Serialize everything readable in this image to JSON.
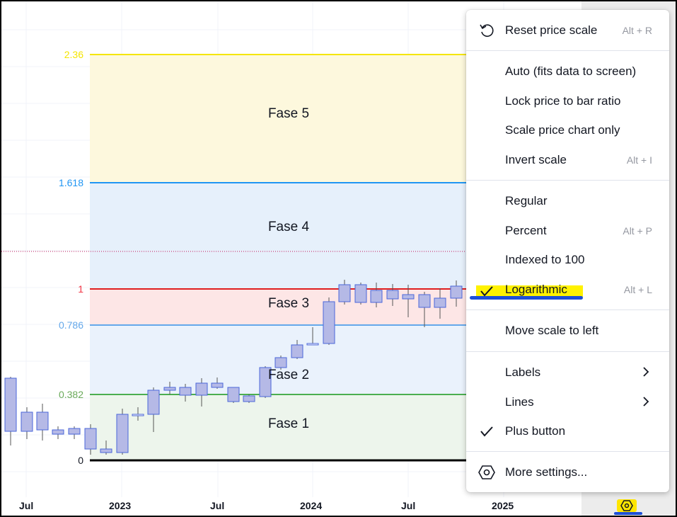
{
  "chart": {
    "fib_levels": [
      {
        "level": "2.36",
        "color": "#f5e500",
        "line_color": "#f5e500"
      },
      {
        "level": "1.618",
        "color": "#2196f3",
        "line_color": "#2196f3"
      },
      {
        "level": "1",
        "color": "#f23645",
        "line_color": "#e02020"
      },
      {
        "level": "0.786",
        "color": "#64a8ea",
        "line_color": "#64a8ea"
      },
      {
        "level": "0.382",
        "color": "#6aaa5a",
        "line_color": "#4caf50"
      },
      {
        "level": "0",
        "color": "#131722",
        "line_color": "#000000"
      }
    ],
    "zones": [
      {
        "label": "Fase 5",
        "fill": "#fdf8dd"
      },
      {
        "label": "Fase 4",
        "fill": "#e6f0fb"
      },
      {
        "label": "Fase 3",
        "fill": "#fde6e6"
      },
      {
        "label": "Fase 2",
        "fill": "#eaf2fc"
      },
      {
        "label": "Fase 1",
        "fill": "#edf5ec"
      }
    ],
    "time_axis": [
      "Jul",
      "2023",
      "Jul",
      "2024",
      "Jul",
      "2025"
    ]
  },
  "menu": {
    "items": [
      {
        "label": "Reset price scale",
        "shortcut": "Alt + R",
        "icon": "reset-icon"
      },
      {
        "label": "Auto (fits data to screen)",
        "shortcut": ""
      },
      {
        "label": "Lock price to bar ratio",
        "shortcut": ""
      },
      {
        "label": "Scale price chart only",
        "shortcut": ""
      },
      {
        "label": "Invert scale",
        "shortcut": "Alt + I"
      },
      {
        "label": "Regular",
        "shortcut": ""
      },
      {
        "label": "Percent",
        "shortcut": "Alt + P"
      },
      {
        "label": "Indexed to 100",
        "shortcut": ""
      },
      {
        "label": "Logarithmic",
        "shortcut": "Alt + L",
        "checked": true
      },
      {
        "label": "Move scale to left",
        "shortcut": ""
      },
      {
        "label": "Labels",
        "submenu": true
      },
      {
        "label": "Lines",
        "submenu": true
      },
      {
        "label": "Plus button",
        "checked": true
      },
      {
        "label": "More settings...",
        "icon": "settings-hex-icon"
      }
    ]
  },
  "colors": {
    "highlight_yellow": "#fff200",
    "annotation_blue": "#1d4fd8",
    "candle_stroke": "#4a66d9",
    "candle_fill_down": "#b5b9e6"
  }
}
